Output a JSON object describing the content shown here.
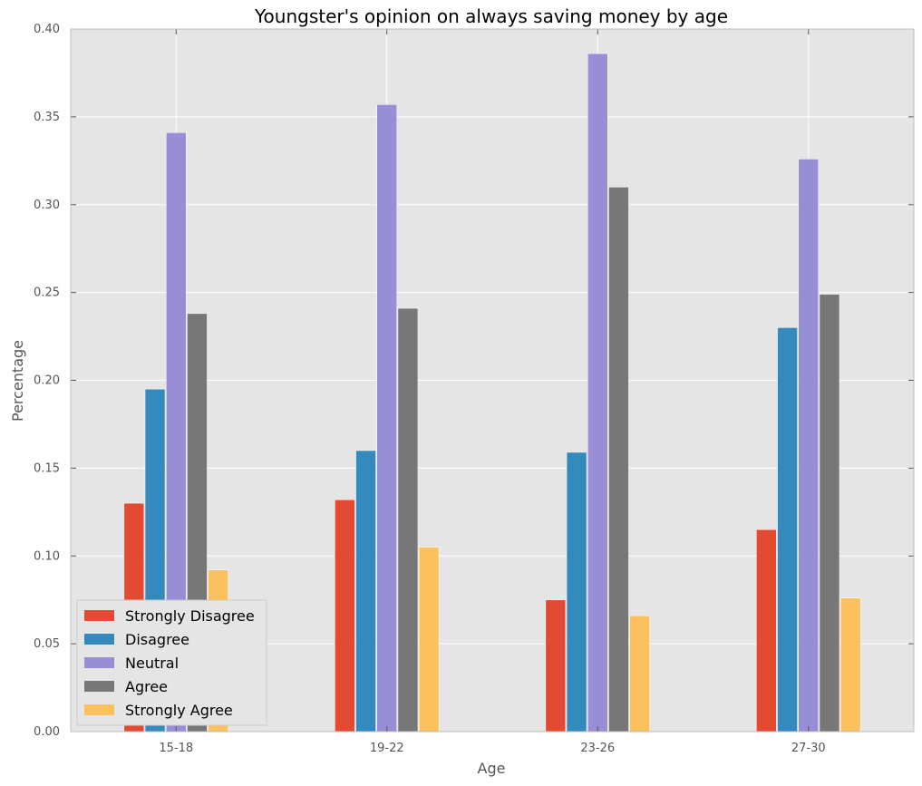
{
  "chart_data": {
    "type": "bar",
    "title": "Youngster's opinion on always saving money by age",
    "xlabel": "Age",
    "ylabel": "Percentage",
    "categories": [
      "15-18",
      "19-22",
      "23-26",
      "27-30"
    ],
    "ylim": [
      0,
      0.4
    ],
    "yticks": [
      "0.00",
      "0.05",
      "0.10",
      "0.15",
      "0.20",
      "0.25",
      "0.30",
      "0.35",
      "0.40"
    ],
    "grid": true,
    "legend_position": "lower-left",
    "series": [
      {
        "name": "Strongly Disagree",
        "color": "#E24A33",
        "values": [
          0.13,
          0.132,
          0.075,
          0.115
        ]
      },
      {
        "name": "Disagree",
        "color": "#348ABD",
        "values": [
          0.195,
          0.16,
          0.159,
          0.23
        ]
      },
      {
        "name": "Neutral",
        "color": "#988ED5",
        "values": [
          0.341,
          0.357,
          0.386,
          0.326
        ]
      },
      {
        "name": "Agree",
        "color": "#777777",
        "values": [
          0.238,
          0.241,
          0.31,
          0.249
        ]
      },
      {
        "name": "Strongly Agree",
        "color": "#FBC15E",
        "values": [
          0.092,
          0.105,
          0.066,
          0.076
        ]
      }
    ]
  }
}
